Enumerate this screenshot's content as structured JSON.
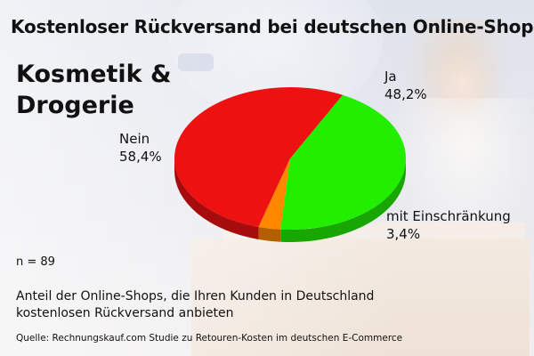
{
  "title": "Kostenloser Rückversand bei deutschen Online-Shops",
  "subtitle": "Kosmetik & Drogerie",
  "n_label": "n = 89",
  "description": "Anteil der Online-Shops, die Ihren Kunden in Deutschland kostenlosen Rückversand anbieten",
  "source": "Quelle: Rechnungskauf.com Studie zu Retouren-Kosten im deutschen E-Commerce",
  "chart_data": {
    "type": "pie",
    "title": "Kostenloser Rückversand bei deutschen Online-Shops",
    "subtitle": "Kosmetik & Drogerie",
    "slices": [
      {
        "label": "Ja",
        "value": 48.2,
        "value_label": "48,2%",
        "color": "#22ee00"
      },
      {
        "label": "mit Einschränkung",
        "value": 3.4,
        "value_label": "3,4%",
        "color": "#ff8800"
      },
      {
        "label": "Nein",
        "value": 58.4,
        "value_label": "58,4%",
        "color": "#ee1111"
      }
    ],
    "style": "3d"
  }
}
